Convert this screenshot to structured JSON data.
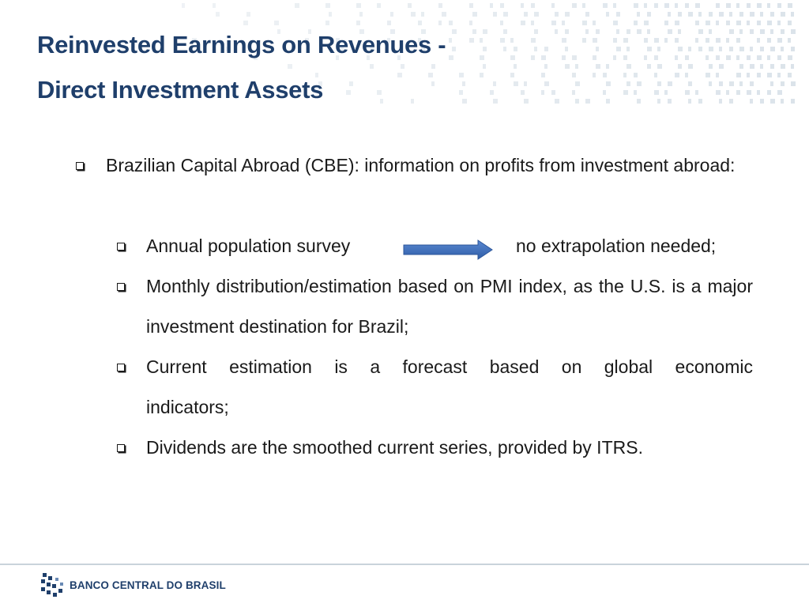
{
  "title": {
    "line1": "Reinvested Earnings on Revenues -",
    "line2": "Direct Investment Assets"
  },
  "bullets": {
    "main": "Brazilian Capital Abroad (CBE): information on profits from investment abroad:",
    "sub1_left": "Annual population survey",
    "sub1_right": "no extrapolation needed;",
    "sub2": "Monthly distribution/estimation based on PMI index, as the U.S. is a major investment destination for Brazil;",
    "sub3_line1": "Current estimation is a forecast based on global economic",
    "sub3_line2": "indicators;",
    "sub4": "Dividends are the smoothed current series, provided by ITRS."
  },
  "bullet_icon": "checkbox-square-icon",
  "arrow_icon": "right-arrow-icon",
  "footer": {
    "logo_text": "BANCO CENTRAL DO BRASIL"
  },
  "colors": {
    "title": "#1f3f6b",
    "arrow": "#3e6fc0",
    "dots": "#dbe3ea"
  }
}
